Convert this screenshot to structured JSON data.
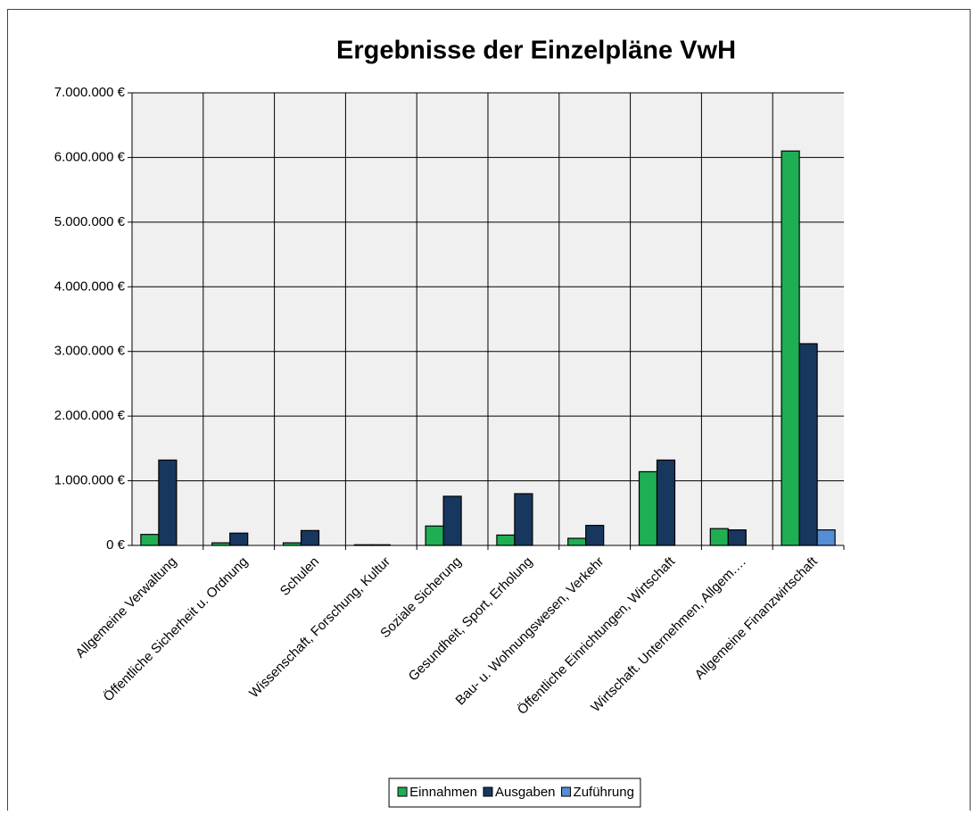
{
  "chart_data": {
    "type": "bar",
    "title": "Ergebnisse der Einzelpläne VwH",
    "categories": [
      "Allgemeine Verwaltung",
      "Öffentliche Sicherheit u. Ordnung",
      "Schulen",
      "Wissenschaft, Forschung, Kultur",
      "Soziale Sicherung",
      "Gesundheit, Sport, Erholung",
      "Bau- u. Wohnungswesen, Verkehr",
      "Öffentliche Einrichtungen, Wirtschaft",
      "Wirtschaft. Unternehmen, Allgem.…",
      "Allgemeine Finanzwirtschaft"
    ],
    "series": [
      {
        "name": "Einnahmen",
        "color": "#1fae53",
        "values": [
          170000,
          40000,
          40000,
          10000,
          300000,
          160000,
          110000,
          1140000,
          260000,
          6100000
        ]
      },
      {
        "name": "Ausgaben",
        "color": "#17375e",
        "values": [
          1320000,
          190000,
          230000,
          10000,
          760000,
          800000,
          310000,
          1320000,
          240000,
          3120000
        ]
      },
      {
        "name": "Zuführung",
        "color": "#558ed5",
        "values": [
          0,
          0,
          0,
          0,
          0,
          0,
          0,
          0,
          0,
          240000
        ]
      }
    ],
    "ylim": [
      0,
      7000000
    ],
    "yticks": [
      {
        "value": 0,
        "label": "0 €"
      },
      {
        "value": 1000000,
        "label": "1.000.000 €"
      },
      {
        "value": 2000000,
        "label": "2.000.000 €"
      },
      {
        "value": 3000000,
        "label": "3.000.000 €"
      },
      {
        "value": 4000000,
        "label": "4.000.000 €"
      },
      {
        "value": 5000000,
        "label": "5.000.000 €"
      },
      {
        "value": 6000000,
        "label": "6.000.000 €"
      },
      {
        "value": 7000000,
        "label": "7.000.000 €"
      }
    ],
    "grid": true
  }
}
